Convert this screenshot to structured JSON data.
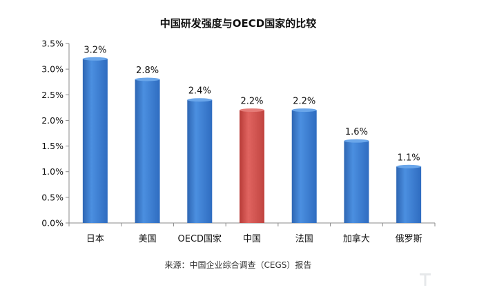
{
  "chart_data": {
    "type": "bar",
    "title": "中国研发强度与OECD国家的比较",
    "categories": [
      "日本",
      "美国",
      "OECD国家",
      "中国",
      "法国",
      "加拿大",
      "俄罗斯"
    ],
    "values": [
      3.2,
      2.8,
      2.4,
      2.2,
      2.2,
      1.6,
      1.1
    ],
    "data_labels": [
      "3.2%",
      "2.8%",
      "2.4%",
      "2.2%",
      "2.2%",
      "1.6%",
      "1.1%"
    ],
    "highlight_category": "中国",
    "ylim": [
      0,
      3.5
    ],
    "yticks": [
      0,
      0.5,
      1.0,
      1.5,
      2.0,
      2.5,
      3.0,
      3.5
    ],
    "ytick_labels": [
      "0.0%",
      "0.5%",
      "1.0%",
      "1.5%",
      "2.0%",
      "2.5%",
      "3.0%",
      "3.5%"
    ],
    "grid": false,
    "legend": "none",
    "source": "来源：中国企业综合调查（CEGS）报告",
    "colors": {
      "bar": "#3d7fd1",
      "bar_highlight": "#d9534f",
      "axis": "#8a8a8a",
      "text": "#111111"
    }
  }
}
